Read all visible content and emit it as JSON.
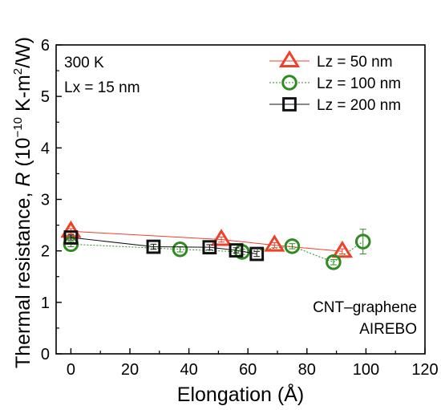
{
  "chart_data": {
    "type": "scatter",
    "xlabel": "Elongation (Å)",
    "ylabel": {
      "prefix": "Thermal resistance, ",
      "symbol": "R",
      "open": " (10",
      "exp": "−10",
      "mid": " K-m",
      "exp2": "2",
      "close": "/W)"
    },
    "xlim": [
      -5,
      120
    ],
    "ylim": [
      0,
      6
    ],
    "xticks": [
      0,
      20,
      40,
      60,
      80,
      100,
      120
    ],
    "yticks": [
      0,
      1,
      2,
      3,
      4,
      5,
      6
    ],
    "annotations": {
      "top_left": [
        "300 K",
        "Lx = 15 nm"
      ],
      "bottom_right": [
        "CNT–graphene",
        "AIREBO"
      ]
    },
    "legend_position": "top-right",
    "series": [
      {
        "name": "Lz = 50 nm",
        "marker": "triangle",
        "color": "#f0402a",
        "line_style": "solid",
        "x": [
          0,
          51,
          69,
          92
        ],
        "y": [
          2.38,
          2.22,
          2.11,
          1.99
        ],
        "yerr": [
          0.05,
          0.05,
          0.05,
          0.05
        ]
      },
      {
        "name": "Lz = 100 nm",
        "marker": "circle",
        "color": "#2e8b20",
        "line_style": "dotted",
        "x": [
          0,
          37,
          58,
          75,
          89,
          99
        ],
        "y": [
          2.13,
          2.03,
          1.98,
          2.09,
          1.78,
          2.18
        ],
        "yerr": [
          0.05,
          0.05,
          0.05,
          0.05,
          0.05,
          0.24
        ]
      },
      {
        "name": "Lz = 200 nm",
        "marker": "square",
        "color": "#111111",
        "line_style": "solid",
        "x": [
          0,
          28,
          47,
          56,
          63
        ],
        "y": [
          2.26,
          2.08,
          2.07,
          2.01,
          1.94
        ],
        "yerr": [
          0.05,
          0.05,
          0.05,
          0.05,
          0.05
        ]
      }
    ]
  }
}
